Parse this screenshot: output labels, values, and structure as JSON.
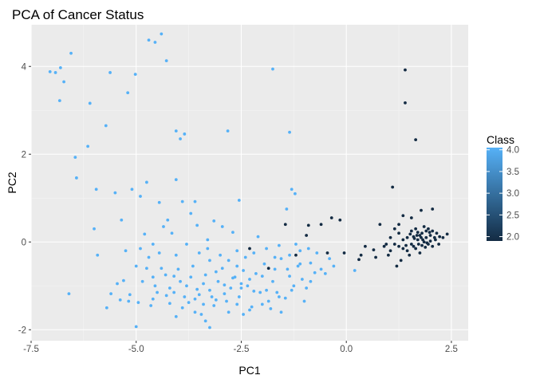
{
  "chart_data": {
    "type": "scatter",
    "title": "PCA of Cancer Status",
    "xlabel": "PC1",
    "ylabel": "PC2",
    "xlim": [
      -7.5,
      2.9
    ],
    "ylim": [
      -2.25,
      4.95
    ],
    "x_ticks": [
      -7.5,
      -5.0,
      -2.5,
      0.0,
      2.5
    ],
    "x_tick_labels": [
      "-7.5",
      "-5.0",
      "-2.5",
      "0.0",
      "2.5"
    ],
    "y_ticks": [
      -2,
      0,
      2,
      4
    ],
    "y_tick_labels": [
      "-2",
      "0",
      "2",
      "4"
    ],
    "grid": true,
    "background": "#ebebeb",
    "legend": {
      "title": "Class",
      "placement": "right",
      "type": "colorbar",
      "range": [
        1.9,
        4.05
      ],
      "breaks": [
        2.0,
        2.5,
        3.0,
        3.5,
        4.0
      ],
      "break_labels": [
        "2.0",
        "2.5",
        "3.0",
        "3.5",
        "4.0"
      ],
      "low_color": "#132b43",
      "high_color": "#56b1f7"
    },
    "series": [
      {
        "class": 4,
        "color": "#56b1f7",
        "points": [
          [
            -7.05,
            3.88
          ],
          [
            -6.92,
            3.86
          ],
          [
            -6.8,
            3.97
          ],
          [
            -6.82,
            3.22
          ],
          [
            -6.72,
            3.65
          ],
          [
            -6.55,
            4.3
          ],
          [
            -6.6,
            -1.18
          ],
          [
            -6.45,
            1.93
          ],
          [
            -6.42,
            1.46
          ],
          [
            -6.1,
            3.16
          ],
          [
            -6.15,
            2.18
          ],
          [
            -6.0,
            0.3
          ],
          [
            -5.92,
            -0.3
          ],
          [
            -5.95,
            1.2
          ],
          [
            -5.72,
            2.65
          ],
          [
            -5.62,
            3.86
          ],
          [
            -5.5,
            1.12
          ],
          [
            -5.35,
            0.5
          ],
          [
            -5.3,
            -0.88
          ],
          [
            -5.2,
            3.4
          ],
          [
            -5.1,
            1.2
          ],
          [
            -5.02,
            3.82
          ],
          [
            -4.9,
            1.04
          ],
          [
            -4.7,
            4.6
          ],
          [
            -4.55,
            4.55
          ],
          [
            -4.4,
            4.74
          ],
          [
            -4.28,
            4.13
          ],
          [
            -4.75,
            1.36
          ],
          [
            -4.45,
            0.9
          ],
          [
            -4.05,
            1.42
          ],
          [
            -4.05,
            2.53
          ],
          [
            -3.95,
            2.35
          ],
          [
            -3.85,
            2.46
          ],
          [
            -3.6,
            0.92
          ],
          [
            -2.82,
            2.53
          ],
          [
            -2.55,
            0.95
          ],
          [
            -1.75,
            3.94
          ],
          [
            -1.35,
            2.5
          ],
          [
            -1.3,
            1.2
          ],
          [
            -1.22,
            1.1
          ],
          [
            -1.42,
            0.75
          ],
          [
            -4.8,
            0.18
          ],
          [
            -5.15,
            -1.2
          ],
          [
            -5.0,
            -1.93
          ],
          [
            -5.7,
            -1.5
          ],
          [
            -5.6,
            -1.18
          ],
          [
            -5.38,
            -1.32
          ],
          [
            -5.18,
            -1.35
          ],
          [
            -5.0,
            -0.55
          ],
          [
            -4.95,
            -1.38
          ],
          [
            -4.6,
            -0.05
          ],
          [
            -4.6,
            -0.8
          ],
          [
            -4.55,
            -1.0
          ],
          [
            -4.4,
            -0.6
          ],
          [
            -4.28,
            -1.22
          ],
          [
            -4.2,
            -1.05
          ],
          [
            -4.1,
            -0.78
          ],
          [
            -4.05,
            -0.3
          ],
          [
            -3.95,
            -0.9
          ],
          [
            -3.85,
            -1.25
          ],
          [
            -3.75,
            -1.38
          ],
          [
            -3.65,
            -0.55
          ],
          [
            -3.55,
            -1.08
          ],
          [
            -3.45,
            -1.65
          ],
          [
            -3.35,
            -0.75
          ],
          [
            -3.25,
            -1.1
          ],
          [
            -3.15,
            -1.45
          ],
          [
            -3.05,
            -0.9
          ],
          [
            -2.95,
            -0.6
          ],
          [
            -2.85,
            -1.35
          ],
          [
            -2.75,
            -1.05
          ],
          [
            -2.65,
            -0.8
          ],
          [
            -2.55,
            -1.25
          ],
          [
            -2.45,
            -0.65
          ],
          [
            -2.35,
            -1.0
          ],
          [
            -2.25,
            -1.48
          ],
          [
            -2.15,
            -0.72
          ],
          [
            -2.05,
            -1.15
          ],
          [
            -1.95,
            -0.5
          ],
          [
            -1.85,
            -1.35
          ],
          [
            -1.75,
            -0.9
          ],
          [
            -1.65,
            -1.15
          ],
          [
            -1.55,
            -0.38
          ],
          [
            -1.45,
            -1.28
          ],
          [
            -1.35,
            -0.78
          ],
          [
            -1.25,
            -1.0
          ],
          [
            -1.15,
            -0.55
          ],
          [
            -1.05,
            -0.85
          ],
          [
            -0.95,
            -1.05
          ],
          [
            -0.9,
            -0.15
          ],
          [
            -0.6,
            -0.62
          ],
          [
            -0.5,
            -0.72
          ],
          [
            -0.4,
            -0.38
          ],
          [
            0.2,
            -0.65
          ],
          [
            -3.25,
            -1.95
          ],
          [
            -3.9,
            0.92
          ],
          [
            -3.7,
            0.65
          ],
          [
            -3.55,
            0.38
          ],
          [
            -3.3,
            0.05
          ],
          [
            -3.15,
            0.48
          ],
          [
            -2.95,
            0.35
          ],
          [
            -2.7,
            0.22
          ],
          [
            -2.4,
            -0.35
          ],
          [
            -4.35,
            0.35
          ],
          [
            -4.25,
            0.5
          ],
          [
            -4.15,
            0.2
          ],
          [
            -4.45,
            -0.25
          ],
          [
            -4.7,
            -0.35
          ],
          [
            -4.85,
            -0.9
          ],
          [
            -4.6,
            -1.3
          ],
          [
            -4.2,
            -1.4
          ],
          [
            -3.9,
            -1.5
          ],
          [
            -3.6,
            -1.6
          ],
          [
            -3.4,
            -1.42
          ],
          [
            -3.1,
            -1.32
          ],
          [
            -2.8,
            -1.6
          ],
          [
            -2.6,
            -1.42
          ],
          [
            -2.3,
            -1.55
          ],
          [
            -2.0,
            -1.42
          ],
          [
            -1.8,
            -1.52
          ],
          [
            -3.8,
            -0.05
          ],
          [
            -3.5,
            -0.25
          ],
          [
            -3.25,
            -0.42
          ],
          [
            -3.0,
            -0.3
          ],
          [
            -2.8,
            -0.42
          ],
          [
            -2.6,
            -0.2
          ],
          [
            -2.2,
            -0.25
          ],
          [
            -1.9,
            -0.15
          ],
          [
            -1.6,
            -0.08
          ],
          [
            -1.35,
            -0.3
          ],
          [
            -1.1,
            -0.2
          ],
          [
            -0.85,
            -0.48
          ],
          [
            -0.7,
            -0.25
          ],
          [
            -4.9,
            -0.15
          ],
          [
            -4.3,
            -0.75
          ],
          [
            -4.0,
            -0.62
          ],
          [
            -3.7,
            -0.8
          ],
          [
            -3.4,
            -0.95
          ],
          [
            -3.1,
            -0.68
          ],
          [
            -2.9,
            -0.98
          ],
          [
            -2.6,
            -0.55
          ],
          [
            -2.3,
            -0.85
          ],
          [
            -2.0,
            -0.78
          ],
          [
            -1.7,
            -0.62
          ],
          [
            -1.4,
            -0.62
          ],
          [
            -1.1,
            -0.5
          ],
          [
            -4.5,
            -1.15
          ],
          [
            -4.1,
            -1.15
          ],
          [
            -3.8,
            -1.0
          ],
          [
            -3.5,
            -1.2
          ],
          [
            -3.2,
            -1.25
          ],
          [
            -2.9,
            -1.18
          ],
          [
            -2.5,
            -1.05
          ],
          [
            -2.2,
            -1.12
          ],
          [
            -1.9,
            -1.1
          ],
          [
            -1.6,
            -1.25
          ],
          [
            -1.3,
            -1.1
          ],
          [
            -1.0,
            -1.35
          ],
          [
            -5.25,
            -0.2
          ],
          [
            -5.45,
            -0.95
          ],
          [
            -4.75,
            -0.6
          ],
          [
            -3.3,
            -0.15
          ],
          [
            -2.1,
            0.12
          ],
          [
            -1.7,
            -0.35
          ],
          [
            -1.2,
            -0.05
          ],
          [
            -0.85,
            -0.9
          ],
          [
            -0.3,
            -0.55
          ],
          [
            -2.7,
            -0.82
          ],
          [
            -2.5,
            -0.95
          ],
          [
            -3.6,
            -1.3
          ],
          [
            -4.65,
            -1.45
          ],
          [
            -4.05,
            -1.7
          ],
          [
            -3.35,
            -1.8
          ],
          [
            -2.45,
            -1.65
          ],
          [
            -1.55,
            -1.6
          ],
          [
            -0.75,
            -0.7
          ]
        ]
      },
      {
        "class": 2,
        "color": "#132b43",
        "points": [
          [
            1.4,
            3.92
          ],
          [
            1.4,
            3.17
          ],
          [
            1.65,
            2.33
          ],
          [
            1.1,
            1.25
          ],
          [
            1.78,
            0.72
          ],
          [
            2.05,
            0.75
          ],
          [
            1.55,
            0.55
          ],
          [
            1.35,
            0.6
          ],
          [
            1.25,
            0.4
          ],
          [
            0.8,
            0.4
          ],
          [
            -0.35,
            0.55
          ],
          [
            -0.15,
            0.5
          ],
          [
            -0.6,
            0.4
          ],
          [
            -1.45,
            0.4
          ],
          [
            -0.9,
            0.38
          ],
          [
            -0.95,
            0.15
          ],
          [
            -2.3,
            -0.15
          ],
          [
            -1.85,
            -0.6
          ],
          [
            -1.2,
            -0.3
          ],
          [
            -0.45,
            -0.25
          ],
          [
            -0.05,
            -0.25
          ],
          [
            0.35,
            -0.3
          ],
          [
            0.7,
            -0.35
          ],
          [
            0.95,
            -0.05
          ],
          [
            1.05,
            -0.2
          ],
          [
            1.15,
            0.3
          ],
          [
            1.25,
            0.2
          ],
          [
            1.35,
            -0.15
          ],
          [
            1.45,
            0.1
          ],
          [
            1.5,
            -0.3
          ],
          [
            1.55,
            0.25
          ],
          [
            1.6,
            -0.1
          ],
          [
            1.65,
            0.3
          ],
          [
            1.7,
            0.05
          ],
          [
            1.75,
            -0.25
          ],
          [
            1.8,
            0.2
          ],
          [
            1.85,
            0.0
          ],
          [
            1.9,
            0.25
          ],
          [
            1.95,
            -0.05
          ],
          [
            2.0,
            0.15
          ],
          [
            2.05,
            -0.1
          ],
          [
            2.1,
            0.1
          ],
          [
            2.15,
            0.2
          ],
          [
            2.2,
            -0.05
          ],
          [
            2.3,
            0.1
          ],
          [
            2.4,
            0.18
          ],
          [
            1.3,
            -0.42
          ],
          [
            1.2,
            -0.55
          ],
          [
            1.0,
            -0.3
          ],
          [
            1.6,
            0.12
          ],
          [
            1.7,
            0.22
          ],
          [
            1.8,
            -0.08
          ],
          [
            1.9,
            0.1
          ],
          [
            2.0,
            0.02
          ],
          [
            1.85,
            0.35
          ],
          [
            1.95,
            0.3
          ],
          [
            2.05,
            0.25
          ],
          [
            1.75,
            0.15
          ],
          [
            1.65,
            -0.15
          ],
          [
            1.55,
            -0.05
          ],
          [
            1.45,
            -0.2
          ],
          [
            1.35,
            0.05
          ],
          [
            1.25,
            -0.1
          ],
          [
            1.15,
            -0.05
          ],
          [
            1.05,
            0.1
          ],
          [
            0.9,
            -0.1
          ],
          [
            0.65,
            -0.18
          ],
          [
            0.45,
            -0.1
          ],
          [
            1.82,
            0.05
          ],
          [
            1.92,
            -0.02
          ],
          [
            1.72,
            -0.05
          ],
          [
            1.62,
            0.08
          ],
          [
            1.52,
            0.18
          ],
          [
            1.42,
            -0.08
          ],
          [
            2.12,
            0.05
          ],
          [
            2.22,
            0.12
          ],
          [
            1.98,
            0.22
          ],
          [
            1.88,
            -0.12
          ],
          [
            1.78,
            0.1
          ],
          [
            1.68,
            0.15
          ],
          [
            0.3,
            -0.4
          ]
        ]
      }
    ]
  }
}
